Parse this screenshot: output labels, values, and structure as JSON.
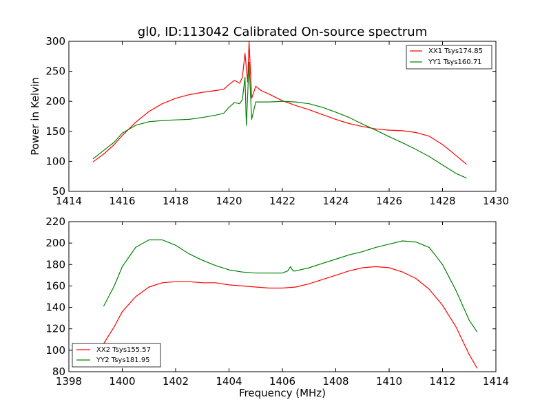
{
  "title": "gl0, ID:113042 Calibrated On-source spectrum",
  "chart_data": [
    {
      "type": "line",
      "title": "gl0, ID:113042 Calibrated On-source spectrum",
      "xlabel": "",
      "ylabel": "Power in Kelvin",
      "xlim": [
        1414,
        1430
      ],
      "ylim": [
        50,
        300
      ],
      "xticks": [
        "1414",
        "1416",
        "1418",
        "1420",
        "1422",
        "1424",
        "1426",
        "1428",
        "1430"
      ],
      "yticks": [
        "50",
        "100",
        "150",
        "200",
        "250",
        "300"
      ],
      "legend_position": "top-right",
      "series": [
        {
          "name": "XX1 Tsys174.85",
          "color": "#ff0000",
          "points": [
            [
              1414.9,
              99
            ],
            [
              1415.3,
              112
            ],
            [
              1415.7,
              128
            ],
            [
              1416.0,
              143
            ],
            [
              1416.5,
              165
            ],
            [
              1417.0,
              183
            ],
            [
              1417.5,
              196
            ],
            [
              1418.0,
              205
            ],
            [
              1418.5,
              211
            ],
            [
              1419.0,
              215
            ],
            [
              1419.5,
              218
            ],
            [
              1419.8,
              220
            ],
            [
              1420.0,
              228
            ],
            [
              1420.2,
              235
            ],
            [
              1420.4,
              230
            ],
            [
              1420.5,
              240
            ],
            [
              1420.6,
              280
            ],
            [
              1420.7,
              232
            ],
            [
              1420.75,
              300
            ],
            [
              1420.85,
              205
            ],
            [
              1421.0,
              225
            ],
            [
              1421.2,
              218
            ],
            [
              1421.5,
              212
            ],
            [
              1422.0,
              201
            ],
            [
              1422.5,
              193
            ],
            [
              1423.0,
              186
            ],
            [
              1423.5,
              178
            ],
            [
              1424.0,
              170
            ],
            [
              1424.5,
              163
            ],
            [
              1425.0,
              158
            ],
            [
              1425.5,
              154
            ],
            [
              1426.0,
              152
            ],
            [
              1426.5,
              151
            ],
            [
              1427.0,
              148
            ],
            [
              1427.5,
              142
            ],
            [
              1428.0,
              128
            ],
            [
              1428.5,
              110
            ],
            [
              1428.9,
              95
            ]
          ]
        },
        {
          "name": "YY1 Tsys160.71",
          "color": "#008000",
          "points": [
            [
              1414.9,
              104
            ],
            [
              1415.3,
              118
            ],
            [
              1415.7,
              132
            ],
            [
              1416.0,
              147
            ],
            [
              1416.5,
              160
            ],
            [
              1417.0,
              166
            ],
            [
              1417.5,
              168
            ],
            [
              1418.0,
              169
            ],
            [
              1418.5,
              170
            ],
            [
              1419.0,
              173
            ],
            [
              1419.5,
              177
            ],
            [
              1419.8,
              180
            ],
            [
              1420.0,
              190
            ],
            [
              1420.2,
              198
            ],
            [
              1420.4,
              196
            ],
            [
              1420.5,
              203
            ],
            [
              1420.6,
              240
            ],
            [
              1420.65,
              160
            ],
            [
              1420.75,
              265
            ],
            [
              1420.85,
              170
            ],
            [
              1421.0,
              199
            ],
            [
              1421.5,
              199
            ],
            [
              1422.0,
              200
            ],
            [
              1422.5,
              199
            ],
            [
              1423.0,
              196
            ],
            [
              1423.5,
              190
            ],
            [
              1424.0,
              182
            ],
            [
              1424.5,
              173
            ],
            [
              1425.0,
              162
            ],
            [
              1425.5,
              152
            ],
            [
              1426.0,
              141
            ],
            [
              1426.5,
              131
            ],
            [
              1427.0,
              120
            ],
            [
              1427.5,
              108
            ],
            [
              1428.0,
              94
            ],
            [
              1428.5,
              80
            ],
            [
              1428.9,
              72
            ]
          ]
        }
      ]
    },
    {
      "type": "line",
      "title": "",
      "xlabel": "Frequency (MHz)",
      "ylabel": "",
      "xlim": [
        1398,
        1414
      ],
      "ylim": [
        80,
        220
      ],
      "xticks": [
        "1398",
        "1400",
        "1402",
        "1404",
        "1406",
        "1408",
        "1410",
        "1412",
        "1414"
      ],
      "yticks": [
        "80",
        "100",
        "120",
        "140",
        "160",
        "180",
        "200",
        "220"
      ],
      "legend_position": "bottom-left",
      "series": [
        {
          "name": "XX2 Tsys155.57",
          "color": "#ff0000",
          "points": [
            [
              1399.3,
              106
            ],
            [
              1399.7,
              122
            ],
            [
              1400.0,
              136
            ],
            [
              1400.5,
              150
            ],
            [
              1401.0,
              159
            ],
            [
              1401.5,
              163
            ],
            [
              1402.0,
              164
            ],
            [
              1402.5,
              164
            ],
            [
              1403.0,
              163
            ],
            [
              1403.5,
              163
            ],
            [
              1404.0,
              161
            ],
            [
              1404.5,
              160
            ],
            [
              1405.0,
              159
            ],
            [
              1405.5,
              158
            ],
            [
              1406.0,
              158
            ],
            [
              1406.5,
              159
            ],
            [
              1407.0,
              162
            ],
            [
              1407.5,
              166
            ],
            [
              1408.0,
              170
            ],
            [
              1408.5,
              174
            ],
            [
              1409.0,
              177
            ],
            [
              1409.5,
              178
            ],
            [
              1410.0,
              177
            ],
            [
              1410.5,
              173
            ],
            [
              1411.0,
              167
            ],
            [
              1411.5,
              157
            ],
            [
              1412.0,
              142
            ],
            [
              1412.5,
              122
            ],
            [
              1413.0,
              96
            ],
            [
              1413.3,
              83
            ]
          ]
        },
        {
          "name": "YY2 Tsys181.95",
          "color": "#008000",
          "points": [
            [
              1399.3,
              141
            ],
            [
              1399.7,
              160
            ],
            [
              1400.0,
              178
            ],
            [
              1400.5,
              196
            ],
            [
              1401.0,
              203
            ],
            [
              1401.5,
              203
            ],
            [
              1402.0,
              198
            ],
            [
              1402.5,
              190
            ],
            [
              1403.0,
              184
            ],
            [
              1403.5,
              179
            ],
            [
              1404.0,
              175
            ],
            [
              1404.5,
              173
            ],
            [
              1405.0,
              172
            ],
            [
              1405.5,
              172
            ],
            [
              1406.0,
              172
            ],
            [
              1406.2,
              174
            ],
            [
              1406.3,
              178
            ],
            [
              1406.4,
              174
            ],
            [
              1406.5,
              174
            ],
            [
              1407.0,
              177
            ],
            [
              1407.5,
              181
            ],
            [
              1408.0,
              185
            ],
            [
              1408.5,
              189
            ],
            [
              1409.0,
              192
            ],
            [
              1409.5,
              196
            ],
            [
              1410.0,
              199
            ],
            [
              1410.5,
              202
            ],
            [
              1411.0,
              201
            ],
            [
              1411.5,
              196
            ],
            [
              1412.0,
              180
            ],
            [
              1412.5,
              156
            ],
            [
              1413.0,
              128
            ],
            [
              1413.3,
              117
            ]
          ]
        }
      ]
    }
  ]
}
